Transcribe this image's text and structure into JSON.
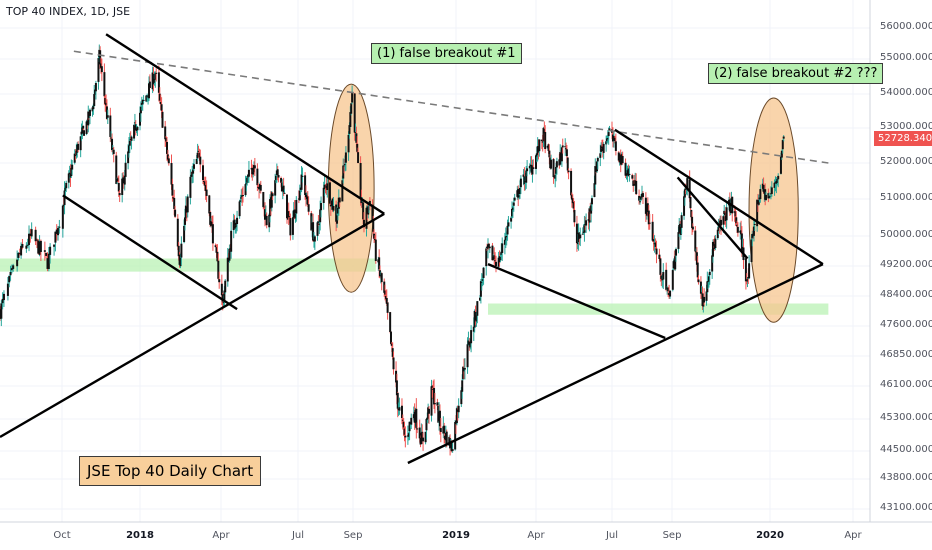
{
  "chart_data": {
    "type": "candlestick",
    "title": "TOP 40 INDEX, 1D, JSE",
    "y_ticks": [
      56000,
      55000,
      54000,
      53000,
      52000,
      51000,
      50000,
      49200,
      48400,
      47600,
      46850,
      46100,
      45300,
      44500,
      43800,
      43100
    ],
    "y_tick_labels": [
      "56000.0000",
      "55000.0000",
      "54000.0000",
      "53000.0000",
      "52000.0000",
      "51000.0000",
      "50000.0000",
      "49200.0000",
      "48400.0000",
      "47600.0000",
      "46850.0000",
      "46100.0000",
      "45300.0000",
      "44500.0000",
      "43800.0000",
      "43100.0000"
    ],
    "x_ticks": [
      {
        "label": "Oct",
        "month": "2017-10",
        "year": false
      },
      {
        "label": "2018",
        "month": "2018-01",
        "year": true
      },
      {
        "label": "Apr",
        "month": "2018-04",
        "year": false
      },
      {
        "label": "Jul",
        "month": "2018-07",
        "year": false
      },
      {
        "label": "Sep",
        "month": "2018-09",
        "year": false
      },
      {
        "label": "2019",
        "month": "2019-01",
        "year": true
      },
      {
        "label": "Apr",
        "month": "2019-04",
        "year": false
      },
      {
        "label": "Jul",
        "month": "2019-07",
        "year": false
      },
      {
        "label": "Sep",
        "month": "2019-09",
        "year": false
      },
      {
        "label": "2020",
        "month": "2020-01",
        "year": true
      },
      {
        "label": "Apr",
        "month": "2020-04",
        "year": false
      }
    ],
    "last_price": "52728.3400",
    "price_path": [
      [
        "2017-08-15",
        48000
      ],
      [
        "2017-08-28",
        49400
      ],
      [
        "2017-09-08",
        50000
      ],
      [
        "2017-09-20",
        49300
      ],
      [
        "2017-10-05",
        51200
      ],
      [
        "2017-10-20",
        52500
      ],
      [
        "2017-11-06",
        53600
      ],
      [
        "2017-11-14",
        55100
      ],
      [
        "2017-11-24",
        53200
      ],
      [
        "2017-12-08",
        51000
      ],
      [
        "2017-12-20",
        52500
      ],
      [
        "2018-01-04",
        53700
      ],
      [
        "2018-01-18",
        54600
      ],
      [
        "2018-01-26",
        53200
      ],
      [
        "2018-02-08",
        50800
      ],
      [
        "2018-02-14",
        49400
      ],
      [
        "2018-02-26",
        51500
      ],
      [
        "2018-03-08",
        52300
      ],
      [
        "2018-03-20",
        50500
      ],
      [
        "2018-04-03",
        48200
      ],
      [
        "2018-04-13",
        50000
      ],
      [
        "2018-04-27",
        51200
      ],
      [
        "2018-05-10",
        52000
      ],
      [
        "2018-05-25",
        50400
      ],
      [
        "2018-06-08",
        51800
      ],
      [
        "2018-06-22",
        50200
      ],
      [
        "2018-07-06",
        51600
      ],
      [
        "2018-07-20",
        49800
      ],
      [
        "2018-08-01",
        51500
      ],
      [
        "2018-08-13",
        50500
      ],
      [
        "2018-08-24",
        52200
      ],
      [
        "2018-08-31",
        54000
      ],
      [
        "2018-09-07",
        51800
      ],
      [
        "2018-09-14",
        50300
      ],
      [
        "2018-09-21",
        51000
      ],
      [
        "2018-09-28",
        49500
      ],
      [
        "2018-10-10",
        48200
      ],
      [
        "2018-10-24",
        45700
      ],
      [
        "2018-11-02",
        44800
      ],
      [
        "2018-11-12",
        45500
      ],
      [
        "2018-11-22",
        44700
      ],
      [
        "2018-12-04",
        46000
      ],
      [
        "2018-12-14",
        45100
      ],
      [
        "2018-12-27",
        44600
      ],
      [
        "2019-01-10",
        46600
      ],
      [
        "2019-01-24",
        48000
      ],
      [
        "2019-02-05",
        49600
      ],
      [
        "2019-02-18",
        49300
      ],
      [
        "2019-03-04",
        50600
      ],
      [
        "2019-03-15",
        51400
      ],
      [
        "2019-03-29",
        52000
      ],
      [
        "2019-04-10",
        52800
      ],
      [
        "2019-04-22",
        51600
      ],
      [
        "2019-05-06",
        52600
      ],
      [
        "2019-05-20",
        49800
      ],
      [
        "2019-06-03",
        50500
      ],
      [
        "2019-06-14",
        52200
      ],
      [
        "2019-06-28",
        52900
      ],
      [
        "2019-07-10",
        52100
      ],
      [
        "2019-07-24",
        51400
      ],
      [
        "2019-08-05",
        50800
      ],
      [
        "2019-08-19",
        49200
      ],
      [
        "2019-08-28",
        48400
      ],
      [
        "2019-09-06",
        49600
      ],
      [
        "2019-09-20",
        51500
      ],
      [
        "2019-10-02",
        49200
      ],
      [
        "2019-10-10",
        48200
      ],
      [
        "2019-10-21",
        49600
      ],
      [
        "2019-11-01",
        50300
      ],
      [
        "2019-11-13",
        50900
      ],
      [
        "2019-11-26",
        49900
      ],
      [
        "2019-12-04",
        48700
      ],
      [
        "2019-12-12",
        50300
      ],
      [
        "2019-12-20",
        51300
      ],
      [
        "2019-12-31",
        51000
      ],
      [
        "2020-01-10",
        51700
      ],
      [
        "2020-01-16",
        52728
      ]
    ],
    "trendlines": [
      {
        "name": "resistance-dashed",
        "style": "dashed",
        "from": [
          "2017-10-15",
          55250
        ],
        "to": [
          "2020-03-05",
          52000
        ]
      },
      {
        "name": "sym-triangle-1-upper",
        "style": "solid",
        "from": [
          "2017-11-22",
          55800
        ],
        "to": [
          "2018-10-08",
          50600
        ]
      },
      {
        "name": "sym-triangle-1-lower",
        "style": "solid",
        "from": [
          "2017-08-15",
          44850
        ],
        "to": [
          "2018-10-08",
          50600
        ]
      },
      {
        "name": "broadening-upper",
        "style": "solid",
        "from": [
          "2017-10-02",
          51100
        ],
        "to": [
          "2018-04-20",
          48050
        ]
      },
      {
        "name": "sym-triangle-2-upper",
        "style": "solid",
        "from": [
          "2019-07-04",
          52950
        ],
        "to": [
          "2020-02-28",
          49250
        ]
      },
      {
        "name": "sym-triangle-2-lower",
        "style": "solid",
        "from": [
          "2018-11-05",
          44200
        ],
        "to": [
          "2020-02-28",
          49250
        ]
      },
      {
        "name": "desc-channel-lower",
        "style": "solid",
        "from": [
          "2019-02-06",
          49250
        ],
        "to": [
          "2019-08-25",
          47300
        ]
      },
      {
        "name": "small-line",
        "style": "solid",
        "from": [
          "2019-09-08",
          51600
        ],
        "to": [
          "2019-12-04",
          49400
        ]
      }
    ],
    "support_zones": [
      {
        "name": "support-zone-1",
        "from": "2017-08-15",
        "to": "2018-09-28",
        "low": 49050,
        "high": 49400
      },
      {
        "name": "support-zone-2",
        "from": "2019-02-06",
        "to": "2020-03-05",
        "low": 47900,
        "high": 48200
      }
    ],
    "highlight_ellipses": [
      {
        "name": "false-breakout-1-ellipse",
        "center": [
          "2018-08-30",
          51300
        ],
        "rx_days": 27,
        "ry_value": 2800
      },
      {
        "name": "false-breakout-2-ellipse",
        "center": [
          "2020-01-05",
          50700
        ],
        "rx_days": 27,
        "ry_value": 3000
      }
    ],
    "annotations": [
      {
        "name": "false-breakout-1-label",
        "text": "(1) false breakout #1"
      },
      {
        "name": "false-breakout-2-label",
        "text": "(2) false breakout #2 ???"
      },
      {
        "name": "chart-caption",
        "text": "JSE Top 40 Daily Chart"
      }
    ]
  }
}
